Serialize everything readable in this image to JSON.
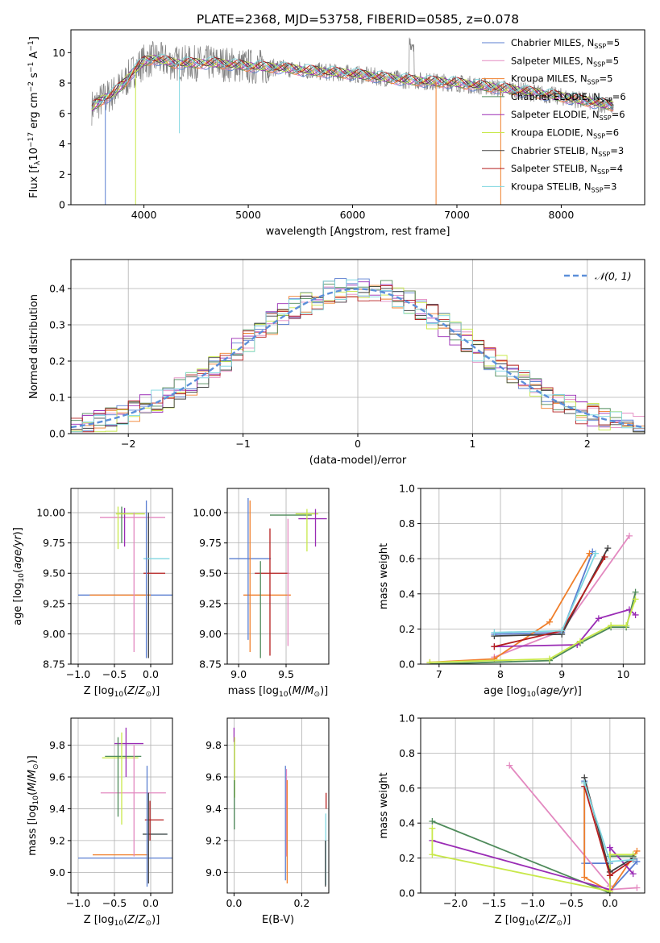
{
  "figure_title": "PLATE=2368, MJD=53758, FIBERID=0585, z=0.078",
  "colors": {
    "Chabrier MILES": "#5b7fd1",
    "Salpeter MILES": "#e389c0",
    "Kroupa MILES": "#f07f2b",
    "Chabrier ELODIE": "#4e8a5a",
    "Salpeter ELODIE": "#9a2cb5",
    "Kroupa ELODIE": "#c8e84a",
    "Chabrier STELIB": "#404040",
    "Salpeter STELIB": "#b51f1f",
    "Kroupa STELIB": "#7fd6e0",
    "normal": "#5b8fd9",
    "data": "#808080"
  },
  "chart_data": [
    {
      "id": "spectrum",
      "type": "line",
      "xlabel": "wavelength [Angstrom, rest frame]",
      "ylabel": "Flux [fλ 10⁻¹⁷ erg cm⁻² s⁻¹ A⁻¹]",
      "xlim": [
        3300,
        8800
      ],
      "ylim": [
        0,
        11.5
      ],
      "xticks": [
        4000,
        5000,
        6000,
        7000,
        8000
      ],
      "yticks": [
        0,
        2,
        4,
        6,
        8,
        10
      ],
      "legend": [
        {
          "label": "Chabrier MILES, N",
          "sub": "SSP",
          "tail": "=5",
          "series": "Chabrier MILES"
        },
        {
          "label": "Salpeter MILES, N",
          "sub": "SSP",
          "tail": "=5",
          "series": "Salpeter MILES"
        },
        {
          "label": "Kroupa MILES, N",
          "sub": "SSP",
          "tail": "=5",
          "series": "Kroupa MILES"
        },
        {
          "label": "Chabrier ELODIE, N",
          "sub": "SSP",
          "tail": "=6",
          "series": "Chabrier ELODIE"
        },
        {
          "label": "Salpeter ELODIE, N",
          "sub": "SSP",
          "tail": "=6",
          "series": "Salpeter ELODIE"
        },
        {
          "label": "Kroupa ELODIE, N",
          "sub": "SSP",
          "tail": "=6",
          "series": "Kroupa ELODIE"
        },
        {
          "label": "Chabrier STELIB, N",
          "sub": "SSP",
          "tail": "=3",
          "series": "Chabrier STELIB"
        },
        {
          "label": "Salpeter STELIB, N",
          "sub": "SSP",
          "tail": "=4",
          "series": "Salpeter STELIB"
        },
        {
          "label": "Kroupa STELIB, N",
          "sub": "SSP",
          "tail": "=3",
          "series": "Kroupa STELIB"
        }
      ],
      "continuum": {
        "x": [
          3500,
          3600,
          3700,
          3800,
          3900,
          4000,
          4100,
          4300,
          4500,
          4700,
          5000,
          5300,
          5600,
          6000,
          6500,
          7000,
          7500,
          8000,
          8500
        ],
        "y": [
          6.4,
          6.9,
          7.3,
          7.9,
          8.8,
          9.4,
          9.6,
          9.3,
          9.3,
          9.3,
          9.1,
          9.0,
          8.8,
          8.6,
          8.2,
          8.0,
          7.6,
          7.1,
          6.5
        ]
      },
      "dips": [
        {
          "x": 3630,
          "y": 0.0,
          "series": "Chabrier MILES"
        },
        {
          "x": 3920,
          "y": 0.0,
          "series": "Kroupa ELODIE"
        },
        {
          "x": 4340,
          "y": 4.7,
          "series": "Kroupa STELIB"
        },
        {
          "x": 6800,
          "y": 0.0,
          "series": "Kroupa MILES"
        },
        {
          "x": 7420,
          "y": 0.0,
          "series": "Kroupa MILES"
        }
      ]
    },
    {
      "id": "residuals",
      "type": "histogram",
      "xlabel": "(data-model)/error",
      "ylabel": "Normed distribution",
      "xlim": [
        -2.5,
        2.5
      ],
      "ylim": [
        0,
        0.48
      ],
      "xticks": [
        -2,
        -1,
        0,
        1,
        2
      ],
      "yticks": [
        0.0,
        0.1,
        0.2,
        0.3,
        0.4
      ],
      "legend": "𝒩(0, 1)",
      "bin_width": 0.1,
      "base_shape": [
        0.02,
        0.025,
        0.03,
        0.04,
        0.05,
        0.06,
        0.07,
        0.085,
        0.1,
        0.11,
        0.13,
        0.15,
        0.17,
        0.19,
        0.21,
        0.24,
        0.26,
        0.28,
        0.3,
        0.32,
        0.34,
        0.355,
        0.37,
        0.38,
        0.39,
        0.4,
        0.41,
        0.415,
        0.42,
        0.425,
        0.43,
        0.425,
        0.41,
        0.39,
        0.37,
        0.35,
        0.33,
        0.31,
        0.29,
        0.27,
        0.24,
        0.22,
        0.2,
        0.18,
        0.15,
        0.13,
        0.11,
        0.09,
        0.07,
        0.05
      ]
    },
    {
      "id": "age-vs-Z",
      "type": "errorbar",
      "xlabel": "Z [log₁₀(Z/Z⊙)]",
      "ylabel": "age  [log₁₀(age/yr)]",
      "xlim": [
        -1.1,
        0.3
      ],
      "ylim": [
        8.75,
        10.2
      ],
      "xticks": [
        -1.0,
        -0.5,
        0.0
      ],
      "yticks": [
        8.75,
        9.0,
        9.25,
        9.5,
        9.75,
        10.0
      ],
      "points": [
        {
          "series": "Chabrier MILES",
          "x": -0.35,
          "y": 9.32,
          "xerr": 0.65,
          "yerr": 0.0
        },
        {
          "series": "Salpeter MILES",
          "x": -0.25,
          "y": 9.96,
          "xerr": 0.45,
          "yerr": 0.0
        },
        {
          "series": "Kroupa MILES",
          "x": -0.42,
          "y": 9.32,
          "xerr": 0.42,
          "yerr": 0.0
        },
        {
          "series": "Chabrier ELODIE",
          "x": -0.4,
          "y": 9.9,
          "xerr": 0.0,
          "yerr": 0.15
        },
        {
          "series": "Salpeter ELODIE",
          "x": -0.36,
          "y": 9.88,
          "xerr": 0.0,
          "yerr": 0.16
        },
        {
          "series": "Kroupa ELODIE",
          "x": -0.28,
          "y": 9.99,
          "xerr": 0.2,
          "yerr": 0.0
        },
        {
          "series": "Chabrier STELIB",
          "x": -0.03,
          "y": 9.4,
          "xerr": 0.0,
          "yerr": 0.6
        },
        {
          "series": "Salpeter STELIB",
          "x": 0.05,
          "y": 9.5,
          "xerr": 0.15,
          "yerr": 0.0
        },
        {
          "series": "Kroupa STELIB",
          "x": 0.08,
          "y": 9.62,
          "xerr": 0.18,
          "yerr": 0.0
        }
      ],
      "vlines": [
        {
          "series": "Salpeter MILES",
          "x": -0.23,
          "y0": 8.85,
          "y1": 10.0
        },
        {
          "series": "Chabrier MILES",
          "x": -0.06,
          "y0": 8.8,
          "y1": 10.1
        },
        {
          "series": "Kroupa ELODIE",
          "x": -0.45,
          "y0": 9.7,
          "y1": 10.05
        }
      ]
    },
    {
      "id": "age-vs-mass",
      "type": "errorbar",
      "xlabel": "mass [log₁₀(M/M⊙)]",
      "ylabel": "",
      "xlim": [
        8.88,
        9.95
      ],
      "ylim": [
        8.75,
        10.2
      ],
      "xticks": [
        9.0,
        9.5
      ],
      "yticks": [
        8.75,
        9.0,
        9.25,
        9.5,
        9.75,
        10.0
      ],
      "points": [
        {
          "series": "Chabrier MILES",
          "x": 9.12,
          "y": 9.62,
          "xerr": 0.22,
          "yerr": 0.0
        },
        {
          "series": "Kroupa MILES",
          "x": 9.3,
          "y": 9.32,
          "xerr": 0.25,
          "yerr": 0.0
        },
        {
          "series": "Salpeter STELIB",
          "x": 9.35,
          "y": 9.5,
          "xerr": 0.18,
          "yerr": 0.0
        },
        {
          "series": "Chabrier ELODIE",
          "x": 9.55,
          "y": 9.98,
          "xerr": 0.22,
          "yerr": 0.0
        },
        {
          "series": "Salpeter ELODIE",
          "x": 9.78,
          "y": 9.95,
          "xerr": 0.15,
          "yerr": 0.0
        },
        {
          "series": "Kroupa ELODIE",
          "x": 9.72,
          "y": 9.99,
          "xerr": 0.12,
          "yerr": 0.0
        }
      ],
      "vlines": [
        {
          "series": "Chabrier MILES",
          "x": 9.1,
          "y0": 8.95,
          "y1": 10.12
        },
        {
          "series": "Kroupa MILES",
          "x": 9.12,
          "y0": 8.85,
          "y1": 10.1
        },
        {
          "series": "Chabrier ELODIE",
          "x": 9.23,
          "y0": 8.8,
          "y1": 9.6
        },
        {
          "series": "Salpeter STELIB",
          "x": 9.33,
          "y0": 8.82,
          "y1": 9.87
        },
        {
          "series": "Salpeter MILES",
          "x": 9.52,
          "y0": 8.9,
          "y1": 9.95
        },
        {
          "series": "Kroupa ELODIE",
          "x": 9.72,
          "y0": 9.68,
          "y1": 10.03
        },
        {
          "series": "Salpeter ELODIE",
          "x": 9.81,
          "y0": 9.72,
          "y1": 10.03
        }
      ]
    },
    {
      "id": "weight-vs-age",
      "type": "line",
      "xlabel": "age  [log₁₀(age/yr)]",
      "ylabel": "mass weight",
      "xlim": [
        6.7,
        10.35
      ],
      "ylim": [
        0,
        1.0
      ],
      "xticks": [
        7,
        8,
        9,
        10
      ],
      "yticks": [
        0.0,
        0.2,
        0.4,
        0.6,
        0.8,
        1.0
      ],
      "series": [
        {
          "name": "Chabrier MILES",
          "x": [
            7.9,
            9.0,
            9.5
          ],
          "y": [
            0.17,
            0.18,
            0.64
          ]
        },
        {
          "name": "Salpeter MILES",
          "x": [
            7.9,
            9.0,
            10.1
          ],
          "y": [
            0.04,
            0.19,
            0.73
          ]
        },
        {
          "name": "Kroupa MILES",
          "x": [
            6.85,
            7.9,
            8.8,
            9.45
          ],
          "y": [
            0.01,
            0.03,
            0.24,
            0.63
          ]
        },
        {
          "name": "Chabrier ELODIE",
          "x": [
            6.85,
            8.8,
            9.3,
            9.8,
            10.05,
            10.2
          ],
          "y": [
            0.0,
            0.02,
            0.12,
            0.21,
            0.21,
            0.41
          ]
        },
        {
          "name": "Salpeter ELODIE",
          "x": [
            7.9,
            9.25,
            9.6,
            10.1,
            10.2
          ],
          "y": [
            0.1,
            0.11,
            0.26,
            0.31,
            0.28
          ]
        },
        {
          "name": "Kroupa ELODIE",
          "x": [
            6.85,
            8.8,
            9.3,
            9.8,
            10.05,
            10.2
          ],
          "y": [
            0.01,
            0.03,
            0.13,
            0.22,
            0.22,
            0.37
          ]
        },
        {
          "name": "Chabrier STELIB",
          "x": [
            7.9,
            9.0,
            9.75
          ],
          "y": [
            0.16,
            0.17,
            0.66
          ]
        },
        {
          "name": "Salpeter STELIB",
          "x": [
            7.9,
            9.0,
            9.7
          ],
          "y": [
            0.1,
            0.19,
            0.61
          ]
        },
        {
          "name": "Kroupa STELIB",
          "x": [
            7.9,
            9.0,
            9.55
          ],
          "y": [
            0.18,
            0.19,
            0.63
          ]
        }
      ]
    },
    {
      "id": "mass-vs-Z",
      "type": "errorbar",
      "xlabel": "Z [log₁₀(Z/Z⊙)]",
      "ylabel": "mass [log₁₀(M/M⊙)]",
      "xlim": [
        -1.1,
        0.3
      ],
      "ylim": [
        8.87,
        9.97
      ],
      "xticks": [
        -1.0,
        -0.5,
        0.0
      ],
      "yticks": [
        9.0,
        9.2,
        9.4,
        9.6,
        9.8
      ],
      "points": [
        {
          "series": "Chabrier MILES",
          "x": -0.35,
          "y": 9.09,
          "xerr": 0.65,
          "yerr": 0.0
        },
        {
          "series": "Kroupa MILES",
          "x": -0.42,
          "y": 9.11,
          "xerr": 0.38,
          "yerr": 0.0
        },
        {
          "series": "Salpeter MILES",
          "x": -0.24,
          "y": 9.5,
          "xerr": 0.45,
          "yerr": 0.0
        },
        {
          "series": "Salpeter ELODIE",
          "x": -0.3,
          "y": 9.81,
          "xerr": 0.2,
          "yerr": 0.0
        },
        {
          "series": "Chabrier ELODIE",
          "x": -0.38,
          "y": 9.73,
          "xerr": 0.25,
          "yerr": 0.0
        },
        {
          "series": "Kroupa ELODIE",
          "x": -0.42,
          "y": 9.72,
          "xerr": 0.25,
          "yerr": 0.0
        },
        {
          "series": "Salpeter STELIB",
          "x": 0.05,
          "y": 9.33,
          "xerr": 0.13,
          "yerr": 0.0
        },
        {
          "series": "Kroupa STELIB",
          "x": 0.06,
          "y": 9.24,
          "xerr": 0.17,
          "yerr": 0.0
        },
        {
          "series": "Chabrier STELIB",
          "x": 0.06,
          "y": 9.24,
          "xerr": 0.17,
          "yerr": 0.0
        }
      ],
      "vlines": [
        {
          "series": "Salpeter ELODIE",
          "x": -0.34,
          "y0": 9.6,
          "y1": 9.91
        },
        {
          "series": "Kroupa ELODIE",
          "x": -0.4,
          "y0": 9.3,
          "y1": 9.88
        },
        {
          "series": "Chabrier ELODIE",
          "x": -0.45,
          "y0": 9.35,
          "y1": 9.85
        },
        {
          "series": "Salpeter MILES",
          "x": -0.23,
          "y0": 9.1,
          "y1": 9.8
        },
        {
          "series": "Chabrier MILES",
          "x": -0.05,
          "y0": 8.91,
          "y1": 9.67
        },
        {
          "series": "Chabrier STELIB",
          "x": -0.03,
          "y0": 8.93,
          "y1": 9.5
        },
        {
          "series": "Salpeter STELIB",
          "x": -0.01,
          "y0": 9.2,
          "y1": 9.45
        }
      ]
    },
    {
      "id": "mass-vs-EBV",
      "type": "errorbar",
      "xlabel": "E(B-V)",
      "ylabel": "",
      "xlim": [
        -0.02,
        0.28
      ],
      "ylim": [
        8.87,
        9.97
      ],
      "xticks": [
        0.0,
        0.2
      ],
      "yticks": [
        9.0,
        9.2,
        9.4,
        9.6,
        9.8
      ],
      "vlines": [
        {
          "series": "Salpeter ELODIE",
          "x": 0.0,
          "y0": 9.82,
          "y1": 9.91
        },
        {
          "series": "Kroupa ELODIE",
          "x": 0.002,
          "y0": 9.47,
          "y1": 9.85
        },
        {
          "series": "Chabrier ELODIE",
          "x": 0.001,
          "y0": 9.27,
          "y1": 9.58
        },
        {
          "series": "Chabrier MILES",
          "x": 0.152,
          "y0": 8.95,
          "y1": 9.67
        },
        {
          "series": "Salpeter MILES",
          "x": 0.155,
          "y0": 9.1,
          "y1": 9.65
        },
        {
          "series": "Kroupa MILES",
          "x": 0.157,
          "y0": 8.93,
          "y1": 9.58
        },
        {
          "series": "Salpeter STELIB",
          "x": 0.272,
          "y0": 9.4,
          "y1": 9.5
        },
        {
          "series": "Kroupa STELIB",
          "x": 0.271,
          "y0": 8.92,
          "y1": 9.37
        },
        {
          "series": "Chabrier STELIB",
          "x": 0.27,
          "y0": 8.91,
          "y1": 9.2
        }
      ]
    },
    {
      "id": "weight-vs-Z",
      "type": "line",
      "xlabel": "Z [log₁₀(Z/Z⊙)]",
      "ylabel": "mass weight",
      "xlim": [
        -2.45,
        0.45
      ],
      "ylim": [
        0,
        1.0
      ],
      "xticks": [
        -2.0,
        -1.5,
        -1.0,
        -0.5,
        0.0
      ],
      "yticks": [
        0.0,
        0.2,
        0.4,
        0.6,
        0.8,
        1.0
      ],
      "series": [
        {
          "name": "Chabrier MILES",
          "x": [
            -0.33,
            -0.33,
            0.0,
            0.0,
            0.35
          ],
          "y": [
            0.64,
            0.17,
            0.17,
            0.01,
            0.18
          ]
        },
        {
          "name": "Salpeter MILES",
          "x": [
            -1.3,
            0.0,
            0.0,
            0.35
          ],
          "y": [
            0.73,
            0.04,
            0.02,
            0.03
          ]
        },
        {
          "name": "Kroupa MILES",
          "x": [
            -0.33,
            -0.33,
            0.0,
            0.35
          ],
          "y": [
            0.63,
            0.09,
            0.01,
            0.24
          ]
        },
        {
          "name": "Chabrier ELODIE",
          "x": [
            -2.3,
            0.0,
            0.0,
            0.3
          ],
          "y": [
            0.41,
            0.0,
            0.21,
            0.21
          ]
        },
        {
          "name": "Salpeter ELODIE",
          "x": [
            -2.3,
            0.0,
            0.0,
            0.3
          ],
          "y": [
            0.3,
            0.02,
            0.26,
            0.11
          ]
        },
        {
          "name": "Kroupa ELODIE",
          "x": [
            -2.3,
            -2.3,
            0.0,
            0.0,
            0.3
          ],
          "y": [
            0.37,
            0.22,
            0.01,
            0.22,
            0.22
          ]
        },
        {
          "name": "Chabrier STELIB",
          "x": [
            -0.33,
            0.0,
            0.3
          ],
          "y": [
            0.66,
            0.12,
            0.2
          ]
        },
        {
          "name": "Salpeter STELIB",
          "x": [
            -0.33,
            0.0,
            0.3
          ],
          "y": [
            0.61,
            0.1,
            0.19
          ]
        },
        {
          "name": "Kroupa STELIB",
          "x": [
            -0.33,
            0.0,
            0.3
          ],
          "y": [
            0.63,
            0.18,
            0.19
          ]
        }
      ]
    }
  ]
}
